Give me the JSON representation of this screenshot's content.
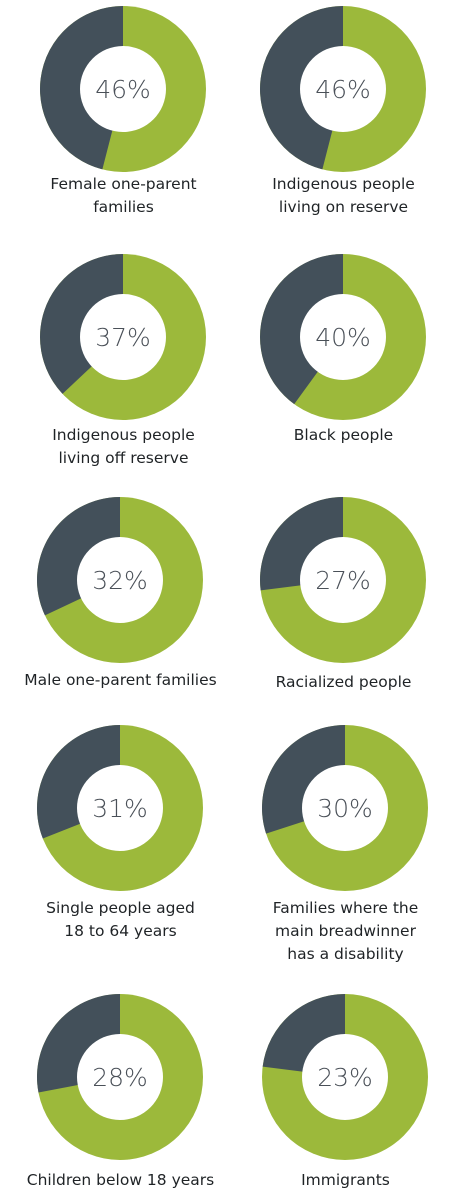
{
  "colors": {
    "share": "#43505a",
    "remainder": "#9cb93b",
    "center": "#ffffff",
    "text": "#4a5058"
  },
  "chart_data": {
    "type": "pie",
    "unit": "%",
    "items": [
      {
        "label": "Female one-parent families",
        "value": 46,
        "display": "46%"
      },
      {
        "label": "Indigenous people living on reserve",
        "value": 46,
        "display": "46%"
      },
      {
        "label": "Indigenous people living off reserve",
        "value": 37,
        "display": "37%"
      },
      {
        "label": "Black people",
        "value": 40,
        "display": "40%"
      },
      {
        "label": "Male one-parent families",
        "value": 32,
        "display": "32%"
      },
      {
        "label": "Racialized people",
        "value": 27,
        "display": "27%"
      },
      {
        "label": "Single people aged 18 to 64 years",
        "value": 31,
        "display": "31%"
      },
      {
        "label": "Families where the main breadwinner has a disability",
        "value": 30,
        "display": "30%"
      },
      {
        "label": "Children below 18 years",
        "value": 28,
        "display": "28%"
      },
      {
        "label": "Immigrants",
        "value": 23,
        "display": "23%"
      }
    ]
  }
}
